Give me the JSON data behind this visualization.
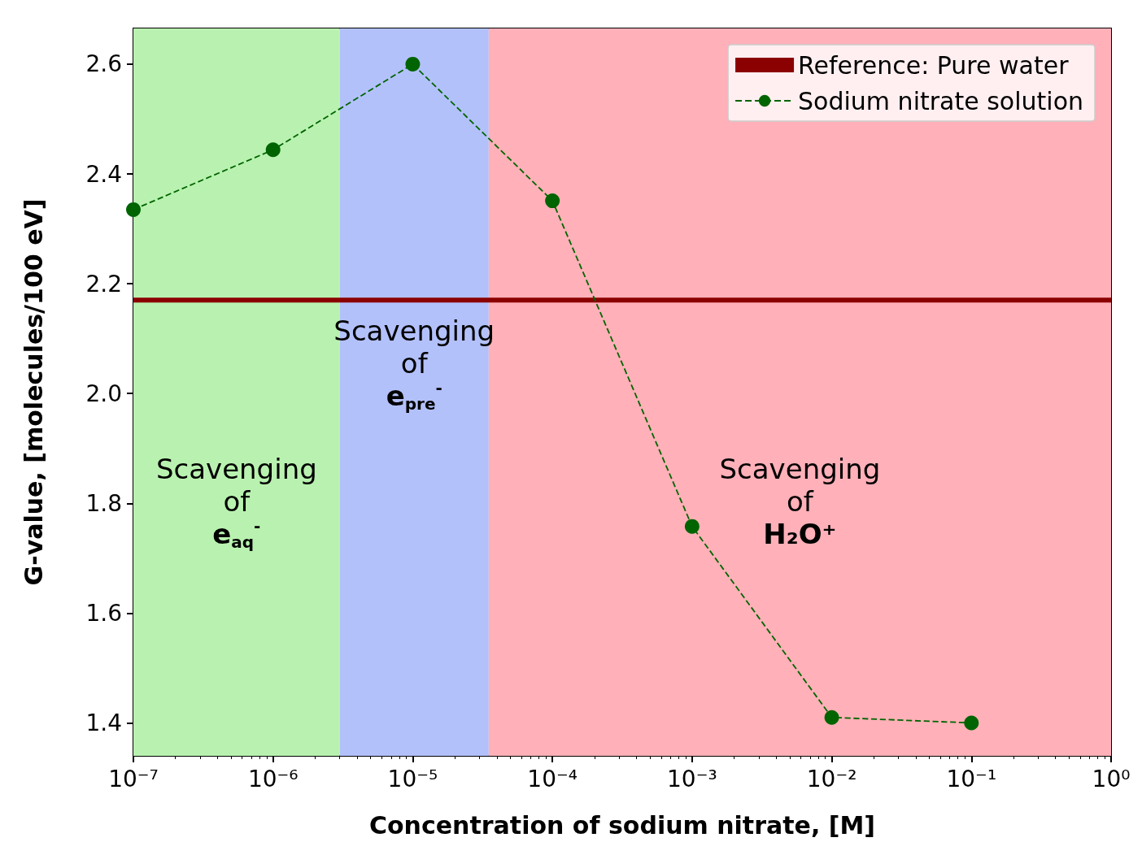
{
  "chart_data": {
    "type": "line",
    "xlabel": "Concentration of sodium nitrate, [M]",
    "ylabel": "G-value, [molecules/100 eV]",
    "x": [
      1e-07,
      1e-06,
      1e-05,
      0.0001,
      0.001,
      0.01,
      0.1
    ],
    "series": [
      {
        "name": "Sodium nitrate solution",
        "color": "#006400",
        "values": [
          2.335,
          2.444,
          2.6,
          2.351,
          1.758,
          1.41,
          1.4
        ],
        "marker": "circle",
        "line_style": "dashed"
      }
    ],
    "ref_lines": [
      {
        "axis": "y",
        "value": 2.17,
        "label": "Reference: Pure water",
        "color": "#8b0000"
      }
    ],
    "bands": [
      {
        "axis": "x",
        "from": 1e-07,
        "to": 3e-06,
        "label": "Scavenging of e$_{aq}$$^{-}$",
        "color": "#b9f2b0"
      },
      {
        "axis": "x",
        "from": 3e-06,
        "to": 3.5e-05,
        "label": "Scavenging of e$_{pre}$$^{-}$",
        "color": "#b3c1fb"
      },
      {
        "axis": "x",
        "from": 3.5e-05,
        "to": 1,
        "label": "Scavenging of H₂O⁺",
        "color": "#ffb0b8"
      }
    ],
    "log": "x",
    "xlim": [
      1e-07,
      1
    ],
    "xticks": [
      {
        "value": 1e-07,
        "label": "10⁻⁷"
      },
      {
        "value": 1e-06,
        "label": "10⁻⁶"
      },
      {
        "value": 1e-05,
        "label": "10⁻⁵"
      },
      {
        "value": 0.0001,
        "label": "10⁻⁴"
      },
      {
        "value": 0.001,
        "label": "10⁻³"
      },
      {
        "value": 0.01,
        "label": "10⁻²"
      },
      {
        "value": 0.1,
        "label": "10⁻¹"
      },
      {
        "value": 1,
        "label": "10⁰"
      }
    ],
    "ylim": [
      1.34,
      2.665
    ],
    "yticks": [
      1.4,
      1.6,
      1.8,
      {
        "value": 2,
        "label": "2.0"
      },
      2.2,
      2.4,
      2.6
    ],
    "grid": false,
    "legend": "top right"
  }
}
